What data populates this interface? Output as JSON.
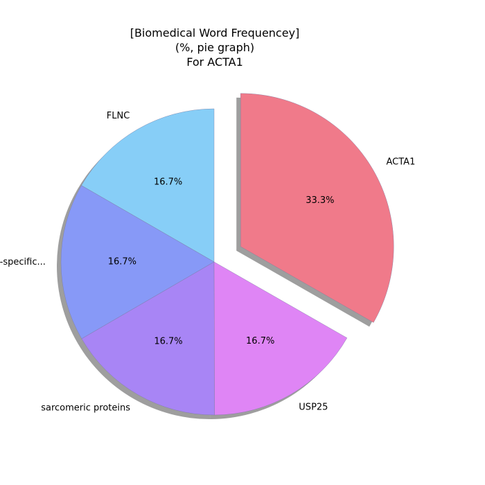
{
  "chart_data": {
    "type": "pie",
    "title_lines": [
      "[Biomedical Word Frequencey]",
      "(%, pie graph)",
      "For ACTA1"
    ],
    "labels": [
      "FLNC",
      "ubiquitin-specific...",
      "sarcomeric proteins",
      "USP25",
      "ACTA1"
    ],
    "values": [
      16.7,
      16.7,
      16.7,
      16.7,
      33.3
    ],
    "percent_labels": [
      "16.7%",
      "16.7%",
      "16.7%",
      "16.7%",
      "33.3%"
    ],
    "colors": [
      "#87CEF7",
      "#8799F7",
      "#A885F5",
      "#DF85F5",
      "#F07A8A"
    ],
    "exploded": [
      false,
      false,
      false,
      false,
      true
    ],
    "shadow": true,
    "start": "top, counterclockwise"
  }
}
